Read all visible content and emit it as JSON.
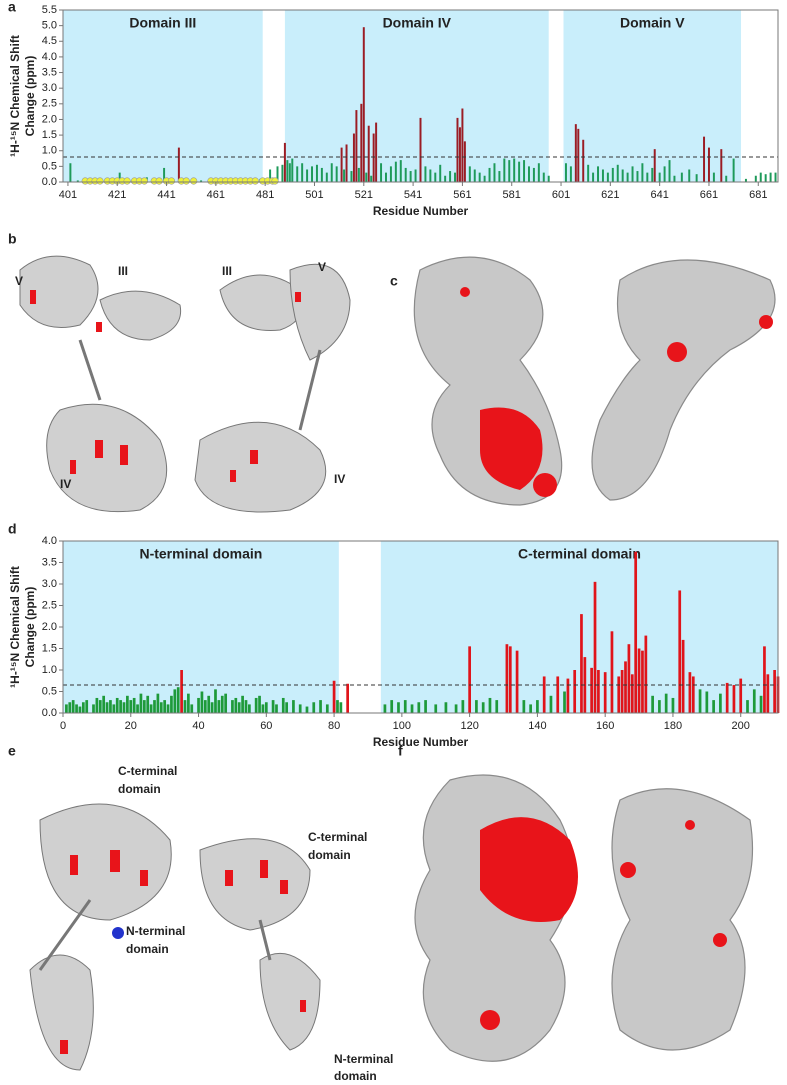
{
  "chart_data": [
    {
      "type": "bar",
      "panel": "a",
      "ylabel": [
        "¹H-¹⁵N Chemical Shift",
        "Change (ppm)"
      ],
      "xlabel": "Residue Number",
      "regions": [
        {
          "label": "Domain III",
          "start": 399,
          "end": 480
        },
        {
          "label": "Domain IV",
          "start": 489,
          "end": 596
        },
        {
          "label": "Domain V",
          "start": 602,
          "end": 674
        }
      ],
      "region_color": "#c9eefb",
      "x": [
        402,
        405,
        420,
        422,
        424,
        426,
        430,
        433,
        437,
        440,
        443,
        446,
        450,
        455,
        460,
        464,
        470,
        475,
        479,
        483,
        486,
        488,
        489,
        490,
        491,
        492,
        494,
        496,
        498,
        500,
        502,
        504,
        506,
        508,
        510,
        512,
        513,
        514,
        516,
        517,
        518,
        519,
        520,
        521,
        522,
        523,
        524,
        525,
        526,
        528,
        530,
        532,
        534,
        536,
        538,
        540,
        542,
        544,
        546,
        548,
        550,
        552,
        554,
        556,
        558,
        559,
        560,
        561,
        562,
        564,
        566,
        568,
        570,
        572,
        574,
        576,
        578,
        580,
        582,
        584,
        586,
        588,
        590,
        592,
        594,
        596,
        603,
        605,
        607,
        608,
        610,
        612,
        614,
        616,
        618,
        620,
        622,
        624,
        626,
        628,
        630,
        632,
        634,
        636,
        638,
        639,
        641,
        643,
        645,
        647,
        650,
        653,
        656,
        659,
        661,
        663,
        666,
        668,
        671,
        676,
        680,
        682,
        684,
        686,
        688
      ],
      "values": [
        0.6,
        0.05,
        0.05,
        0.3,
        0.1,
        0.05,
        0.1,
        0.15,
        0.1,
        0.45,
        0.05,
        1.1,
        0.05,
        0.05,
        0.1,
        0.05,
        0.05,
        0.05,
        0.1,
        0.4,
        0.5,
        0.55,
        1.25,
        0.7,
        0.6,
        0.75,
        0.5,
        0.6,
        0.4,
        0.5,
        0.55,
        0.45,
        0.3,
        0.6,
        0.5,
        1.1,
        0.4,
        1.2,
        0.35,
        1.55,
        2.3,
        0.45,
        2.5,
        4.95,
        0.3,
        1.8,
        0.2,
        1.55,
        1.9,
        0.6,
        0.3,
        0.5,
        0.65,
        0.7,
        0.45,
        0.35,
        0.4,
        2.05,
        0.5,
        0.4,
        0.3,
        0.55,
        0.2,
        0.35,
        0.3,
        2.05,
        1.75,
        2.35,
        1.3,
        0.5,
        0.4,
        0.3,
        0.2,
        0.45,
        0.6,
        0.35,
        0.75,
        0.7,
        0.75,
        0.65,
        0.7,
        0.5,
        0.45,
        0.6,
        0.3,
        0.2,
        0.6,
        0.5,
        1.85,
        1.7,
        1.35,
        0.55,
        0.3,
        0.5,
        0.4,
        0.3,
        0.45,
        0.55,
        0.4,
        0.3,
        0.5,
        0.35,
        0.6,
        0.3,
        0.45,
        1.05,
        0.3,
        0.5,
        0.7,
        0.2,
        0.3,
        0.4,
        0.25,
        1.45,
        1.1,
        0.3,
        1.05,
        0.2,
        0.75,
        0.1,
        0.2,
        0.3,
        0.25,
        0.3,
        0.3
      ],
      "color": "#1e9a5a",
      "above_color": "#9b1c24",
      "threshold": 0.8,
      "unassigned_x": [
        408,
        410,
        412,
        414,
        417,
        419,
        421,
        423,
        425,
        428,
        430,
        432,
        436,
        438,
        441,
        443,
        447,
        449,
        452,
        459,
        461,
        463,
        465,
        467,
        469,
        471,
        473,
        475,
        477,
        480,
        482,
        484,
        485
      ],
      "unassigned_color": "#eef23a",
      "xlim": [
        399,
        689
      ],
      "ylim": [
        0,
        5.5
      ],
      "xticks": [
        401,
        421,
        441,
        461,
        481,
        501,
        521,
        541,
        561,
        581,
        601,
        621,
        641,
        661,
        681
      ],
      "yticks": [
        {
          "value": 0,
          "label": "0.0"
        },
        0.5,
        {
          "value": 1,
          "label": "1.0"
        },
        1.5,
        {
          "value": 2,
          "label": "2.0"
        },
        2.5,
        {
          "value": 3,
          "label": "3.0"
        },
        3.5,
        {
          "value": 4,
          "label": "4.0"
        },
        4.5,
        {
          "value": 5,
          "label": "5.0"
        },
        5.5
      ]
    },
    {
      "type": "bar",
      "panel": "d",
      "ylabel": [
        "¹H-¹⁵N Chemical Shift",
        "Change (ppm)"
      ],
      "xlabel": "Residue Number",
      "regions": [
        {
          "label": "N-terminal domain",
          "start": 0,
          "end": 81.4
        },
        {
          "label": "C-terminal domain",
          "start": 93.8,
          "end": 211
        }
      ],
      "region_color": "#c9eefb",
      "x": [
        1,
        2,
        3,
        4,
        5,
        6,
        7,
        9,
        10,
        11,
        12,
        13,
        14,
        15,
        16,
        17,
        18,
        19,
        20,
        21,
        22,
        23,
        24,
        25,
        26,
        27,
        28,
        29,
        30,
        31,
        32,
        33,
        34,
        35,
        36,
        37,
        38,
        40,
        41,
        42,
        43,
        44,
        45,
        46,
        47,
        48,
        50,
        51,
        52,
        53,
        54,
        55,
        57,
        58,
        59,
        60,
        62,
        63,
        65,
        66,
        68,
        70,
        72,
        74,
        76,
        78,
        80,
        81,
        82,
        84,
        95,
        97,
        99,
        101,
        103,
        105,
        107,
        110,
        113,
        116,
        118,
        120,
        122,
        124,
        126,
        128,
        131,
        132,
        134,
        136,
        138,
        140,
        142,
        144,
        146,
        148,
        149,
        151,
        153,
        154,
        156,
        157,
        158,
        160,
        162,
        164,
        165,
        166,
        167,
        168,
        169,
        170,
        171,
        172,
        174,
        176,
        178,
        180,
        182,
        183,
        185,
        186,
        188,
        190,
        192,
        194,
        196,
        198,
        200,
        202,
        204,
        206,
        207,
        208,
        210,
        211
      ],
      "values": [
        0.2,
        0.25,
        0.3,
        0.2,
        0.15,
        0.25,
        0.3,
        0.2,
        0.35,
        0.3,
        0.4,
        0.25,
        0.3,
        0.2,
        0.35,
        0.3,
        0.25,
        0.4,
        0.3,
        0.35,
        0.2,
        0.45,
        0.3,
        0.4,
        0.2,
        0.3,
        0.45,
        0.25,
        0.3,
        0.2,
        0.4,
        0.55,
        0.6,
        1.0,
        0.3,
        0.45,
        0.2,
        0.35,
        0.5,
        0.3,
        0.4,
        0.25,
        0.55,
        0.3,
        0.4,
        0.45,
        0.3,
        0.35,
        0.25,
        0.4,
        0.3,
        0.2,
        0.35,
        0.4,
        0.2,
        0.25,
        0.3,
        0.2,
        0.35,
        0.25,
        0.3,
        0.2,
        0.15,
        0.25,
        0.3,
        0.2,
        0.75,
        0.3,
        0.25,
        0.68,
        0.2,
        0.3,
        0.25,
        0.3,
        0.2,
        0.25,
        0.3,
        0.2,
        0.25,
        0.2,
        0.3,
        1.55,
        0.3,
        0.25,
        0.35,
        0.3,
        1.6,
        1.55,
        1.45,
        0.3,
        0.2,
        0.3,
        0.85,
        0.4,
        0.85,
        0.5,
        0.8,
        1.0,
        2.3,
        1.3,
        1.05,
        3.05,
        1.0,
        0.95,
        1.9,
        0.85,
        1.0,
        1.2,
        1.6,
        0.9,
        3.75,
        1.5,
        1.45,
        1.8,
        0.4,
        0.3,
        0.45,
        0.35,
        2.85,
        1.7,
        0.95,
        0.85,
        0.55,
        0.5,
        0.3,
        0.45,
        0.7,
        0.65,
        0.8,
        0.3,
        0.55,
        0.4,
        1.55,
        0.9,
        1.0,
        0.85
      ],
      "color": "#1e9a3a",
      "above_color": "#e0141a",
      "threshold": 0.65,
      "xlim": [
        0,
        211
      ],
      "ylim": [
        0,
        4
      ],
      "xticks": [
        0,
        20,
        40,
        60,
        80,
        100,
        120,
        140,
        160,
        180,
        200
      ],
      "yticks": [
        {
          "value": 0,
          "label": "0.0"
        },
        0.5,
        {
          "value": 1,
          "label": "1.0"
        },
        1.5,
        {
          "value": 2,
          "label": "2.0"
        },
        2.5,
        {
          "value": 3,
          "label": "3.0"
        },
        3.5,
        {
          "value": 4,
          "label": "4.0"
        }
      ]
    }
  ],
  "panels": {
    "b": "b",
    "c": "c",
    "e": "e",
    "f": "f"
  },
  "structure_labels": {
    "b_left_v": "V",
    "b_left_iii": "III",
    "b_left_iv": "IV",
    "b_right_iii": "III",
    "b_right_v": "V",
    "b_right_iv": "IV",
    "e_left_c": [
      "C-terminal",
      "domain"
    ],
    "e_left_n": [
      "N-terminal",
      "domain"
    ],
    "e_right_c": [
      "C-terminal",
      "domain"
    ],
    "e_right_n": [
      "N-terminal",
      "domain"
    ]
  }
}
